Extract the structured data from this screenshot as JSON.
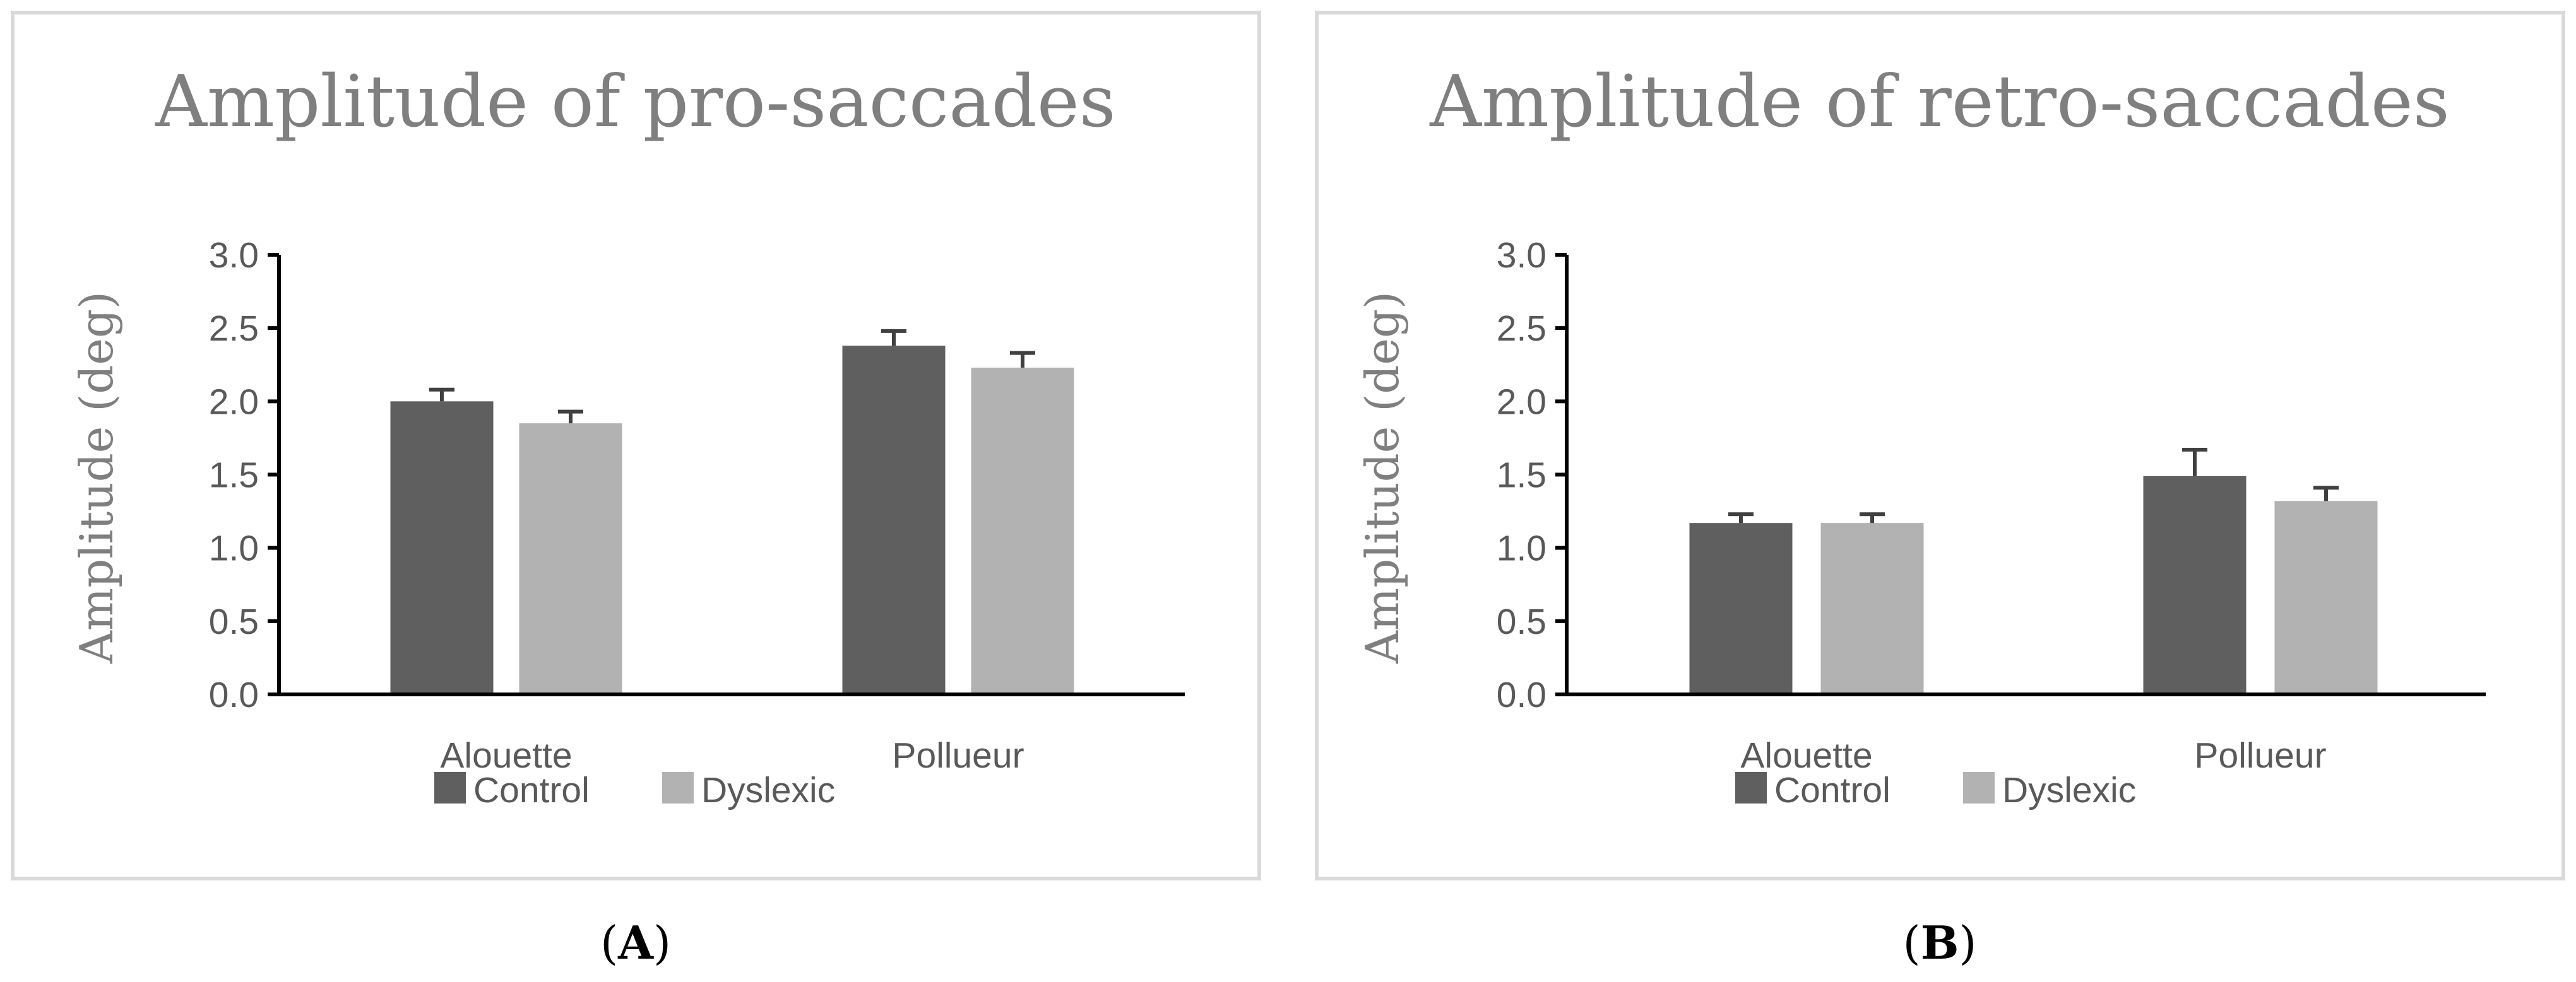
{
  "chart_data": [
    {
      "type": "bar",
      "title": "Amplitude of pro-saccades",
      "ylabel": "Amplitude (deg)",
      "xlabel": "",
      "categories": [
        "Alouette",
        "Pollueur"
      ],
      "series": [
        {
          "name": "Control",
          "values": [
            2.0,
            2.38
          ],
          "error": [
            0.08,
            0.1
          ],
          "color": "#5f5f5f"
        },
        {
          "name": "Dyslexic",
          "values": [
            1.85,
            2.23
          ],
          "error": [
            0.08,
            0.1
          ],
          "color": "#b2b2b2"
        }
      ],
      "ylim": [
        0,
        3.0
      ],
      "yticks": [
        "0.0",
        "0.5",
        "1.0",
        "1.5",
        "2.0",
        "2.5",
        "3.0"
      ],
      "legend": "bottom",
      "grid": false,
      "panel_label": "A"
    },
    {
      "type": "bar",
      "title": "Amplitude of retro-saccades",
      "ylabel": "Amplitude (deg)",
      "xlabel": "",
      "categories": [
        "Alouette",
        "Pollueur"
      ],
      "series": [
        {
          "name": "Control",
          "values": [
            1.17,
            1.49
          ],
          "error": [
            0.06,
            0.18
          ],
          "color": "#5f5f5f"
        },
        {
          "name": "Dyslexic",
          "values": [
            1.17,
            1.32
          ],
          "error": [
            0.06,
            0.09
          ],
          "color": "#b2b2b2"
        }
      ],
      "ylim": [
        0,
        3.0
      ],
      "yticks": [
        "0.0",
        "0.5",
        "1.0",
        "1.5",
        "2.0",
        "2.5",
        "3.0"
      ],
      "legend": "bottom",
      "grid": false,
      "panel_label": "B"
    }
  ]
}
